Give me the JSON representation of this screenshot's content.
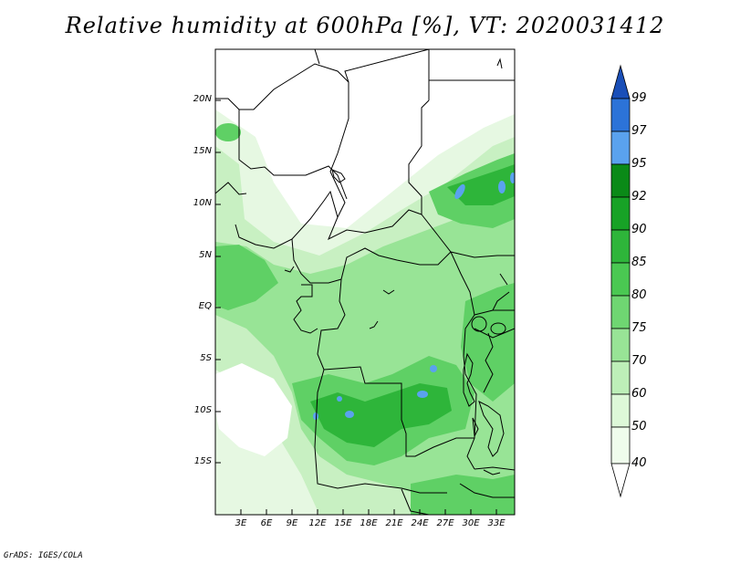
{
  "title": "Relative humidity at 600hPa [%], VT: 2020031412",
  "credit": "GrADS: IGES/COLA",
  "lat_labels": [
    "20N",
    "15N",
    "10N",
    "5N",
    "EQ",
    "5S",
    "10S",
    "15S"
  ],
  "lon_labels": [
    "3E",
    "6E",
    "9E",
    "12E",
    "15E",
    "18E",
    "21E",
    "24E",
    "27E",
    "30E",
    "33E"
  ],
  "colorbar": {
    "labels": [
      "99",
      "97",
      "95",
      "92",
      "90",
      "85",
      "80",
      "75",
      "70",
      "60",
      "50",
      "40"
    ],
    "colors": {
      "above_99": "#1a4fb8",
      "97_99": "#2c73d8",
      "95_97": "#5aa2ee",
      "92_95": "#0a8a17",
      "90_92": "#17a226",
      "85_90": "#2eb53a",
      "80_85": "#4ac852",
      "75_80": "#6fd672",
      "70_75": "#98e496",
      "60_70": "#bdefb8",
      "50_60": "#ddf8d8",
      "40_50": "#effcec",
      "below_40": "#ffffff"
    }
  },
  "map_colors": {
    "dry": "#ffffff",
    "light": "#e6f8e2",
    "pale": "#c8f0c2",
    "mid": "#98e496",
    "green": "#5fd065",
    "deep": "#2eb53a",
    "dark": "#0a8a17",
    "blue": "#5aa2ee"
  }
}
